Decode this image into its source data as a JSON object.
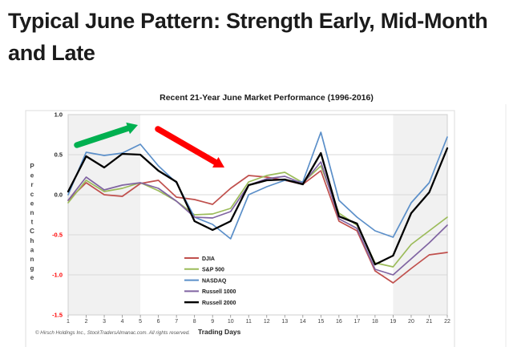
{
  "headline": "Typical June Pattern: Strength Early, Mid-Month and Late",
  "footer": {
    "copyright": "© Hirsch Holdings Inc., StockTradersAlmanac.com. All rights reserved."
  },
  "chart_data": {
    "type": "line",
    "title": "Recent 21-Year June Market Performance (1996-2016)",
    "xlabel": "Trading Days",
    "ylabel": "Percent Change",
    "x": [
      1,
      2,
      3,
      4,
      5,
      6,
      7,
      8,
      9,
      10,
      11,
      12,
      13,
      14,
      15,
      16,
      17,
      18,
      19,
      20,
      21,
      22
    ],
    "ylim": [
      -1.5,
      1.0
    ],
    "ytick_step": 0.5,
    "yticks": [
      "1.0",
      "0.5",
      "0.0",
      "-0.5",
      "-1.0",
      "-1.5"
    ],
    "positive_tick_color": "#262626",
    "negative_tick_color": "#FF0000",
    "grid": true,
    "gridline_color": "#d9d9d9",
    "shaded_day_ranges": [
      [
        1,
        5
      ],
      [
        19,
        22
      ]
    ],
    "shaded_band_color": "#F1F1F1",
    "legend_position": "lower-left-inside",
    "series": [
      {
        "name": "DJIA",
        "color": "#C0504D",
        "values": [
          -0.07,
          0.15,
          0.0,
          -0.02,
          0.14,
          0.18,
          -0.03,
          -0.06,
          -0.12,
          0.08,
          0.24,
          0.22,
          0.18,
          0.13,
          0.3,
          -0.33,
          -0.45,
          -0.95,
          -1.1,
          -0.92,
          -0.75,
          -0.72
        ]
      },
      {
        "name": "S&P 500",
        "color": "#9BBB59",
        "values": [
          -0.1,
          0.18,
          0.04,
          0.08,
          0.15,
          0.05,
          -0.08,
          -0.25,
          -0.24,
          -0.17,
          0.16,
          0.24,
          0.28,
          0.15,
          0.36,
          -0.23,
          -0.38,
          -0.85,
          -0.9,
          -0.62,
          -0.45,
          -0.28
        ]
      },
      {
        "name": "NASDAQ",
        "color": "#5B8FC9",
        "values": [
          0.0,
          0.53,
          0.49,
          0.52,
          0.63,
          0.36,
          0.15,
          -0.28,
          -0.37,
          -0.55,
          0.0,
          0.1,
          0.18,
          0.16,
          0.78,
          -0.07,
          -0.28,
          -0.45,
          -0.53,
          -0.1,
          0.15,
          0.72
        ]
      },
      {
        "name": "Russell 1000",
        "color": "#8064A2",
        "values": [
          -0.07,
          0.22,
          0.06,
          0.12,
          0.15,
          0.08,
          -0.08,
          -0.28,
          -0.29,
          -0.21,
          0.12,
          0.2,
          0.23,
          0.14,
          0.41,
          -0.3,
          -0.42,
          -0.93,
          -1.0,
          -0.8,
          -0.6,
          -0.38
        ]
      },
      {
        "name": "Russell 2000",
        "color": "#000000",
        "values": [
          0.04,
          0.48,
          0.34,
          0.51,
          0.5,
          0.3,
          0.16,
          -0.33,
          -0.44,
          -0.33,
          0.12,
          0.18,
          0.19,
          0.13,
          0.52,
          -0.27,
          -0.36,
          -0.87,
          -0.76,
          -0.23,
          0.03,
          0.58
        ]
      }
    ],
    "annotations": [
      {
        "name": "green-arrow",
        "type": "arrow",
        "direction": "up-right",
        "color": "#00B050"
      },
      {
        "name": "red-arrow",
        "type": "arrow",
        "direction": "down-right",
        "color": "#FF0000"
      }
    ]
  }
}
